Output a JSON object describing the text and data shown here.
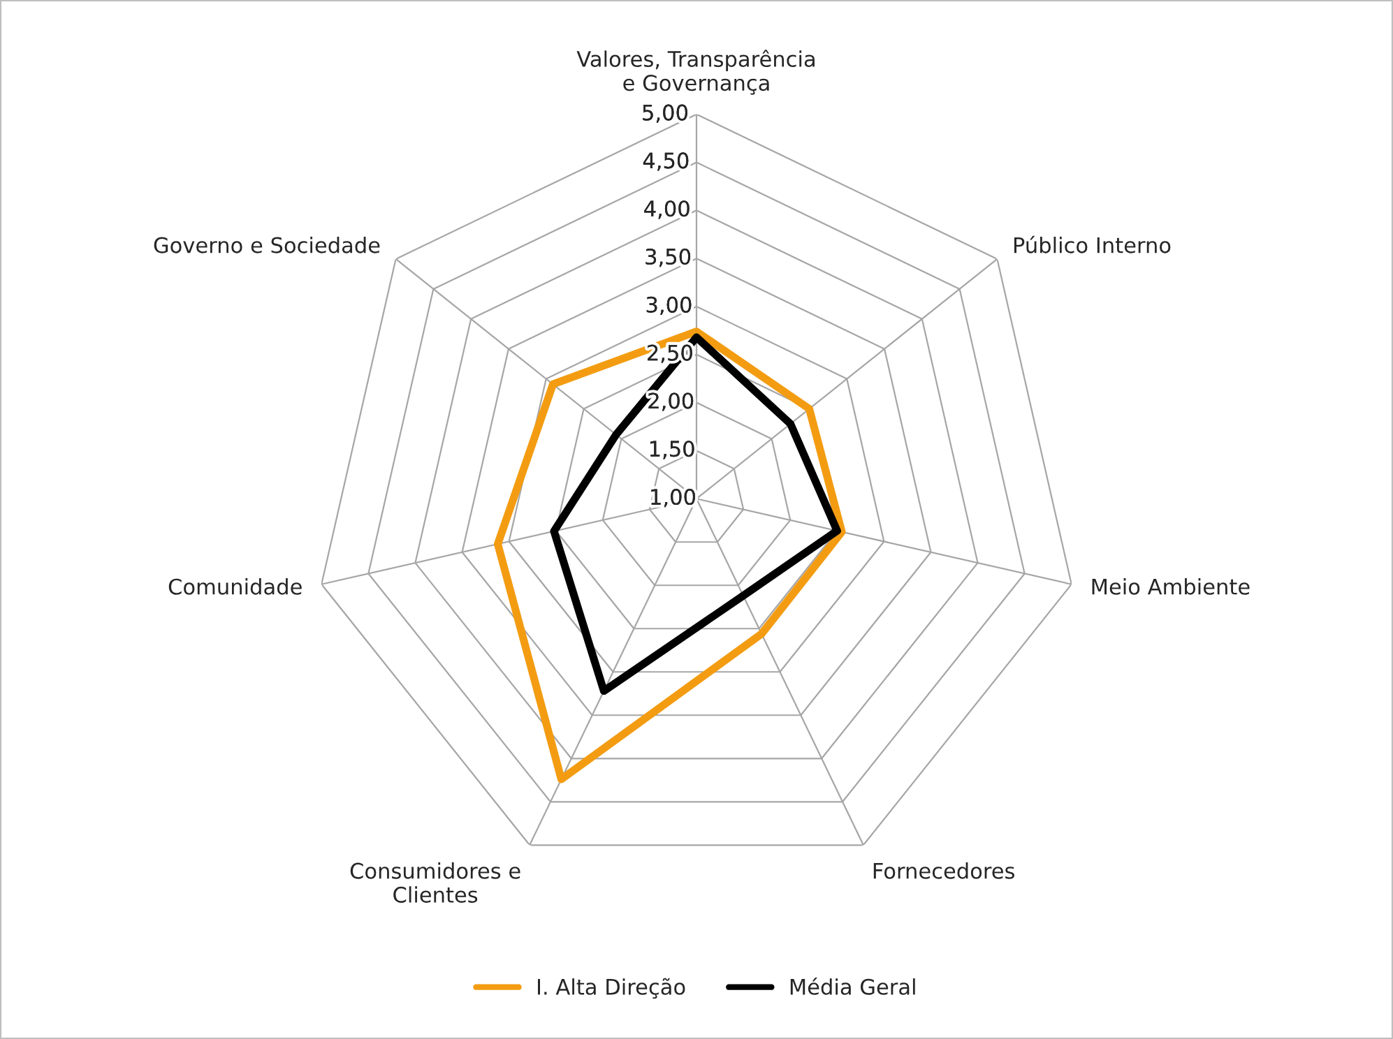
{
  "chart_data": {
    "type": "radar",
    "categories": [
      "Valores, Transparência e Governança",
      "Público Interno",
      "Meio Ambiente",
      "Fornecedores",
      "Consumidores e Clientes",
      "Comunidade",
      "Governo e Sociedade"
    ],
    "series": [
      {
        "name": "I. Alta Direção",
        "color": "#f39c12",
        "values": [
          2.74,
          2.5,
          2.55,
          2.56,
          4.24,
          3.12,
          2.91
        ]
      },
      {
        "name": "Média Geral",
        "color": "#000000",
        "values": [
          2.68,
          2.25,
          2.5,
          2.12,
          3.22,
          2.52,
          2.07
        ]
      }
    ],
    "ylim": [
      1.0,
      5.0
    ],
    "yticks": [
      {
        "value": 1.0,
        "label": "1,00"
      },
      {
        "value": 1.5,
        "label": "1,50"
      },
      {
        "value": 2.0,
        "label": "2,00"
      },
      {
        "value": 2.5,
        "label": "2,50"
      },
      {
        "value": 3.0,
        "label": "3,00"
      },
      {
        "value": 3.5,
        "label": "3,50"
      },
      {
        "value": 4.0,
        "label": "4,00"
      },
      {
        "value": 4.5,
        "label": "4,50"
      },
      {
        "value": 5.0,
        "label": "5,00"
      }
    ],
    "grid": true,
    "legend": "bottom",
    "marker": "none",
    "line_style": "solid"
  }
}
